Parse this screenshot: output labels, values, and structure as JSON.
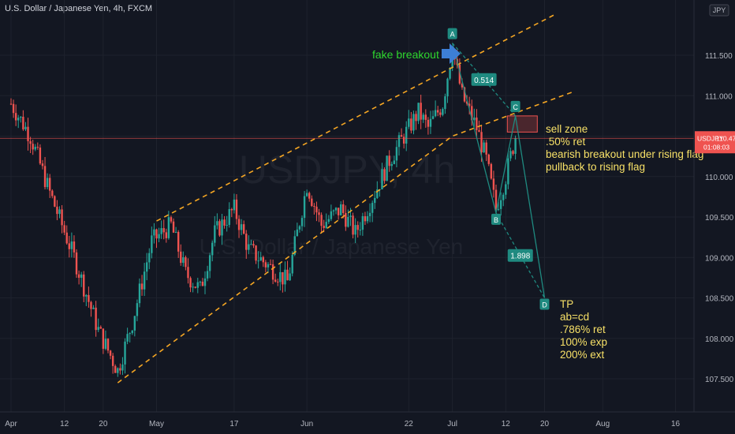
{
  "header": {
    "title": "U.S. Dollar / Japanese Yen, 4h, FXCM"
  },
  "currency_badge": "JPY",
  "watermark": {
    "symbol": "USDJPY, 4h",
    "name": "U.S. Dollar / Japanese Yen"
  },
  "price_tag": {
    "symbol": "USDJPY",
    "price": "110.473",
    "countdown": "01:08:03",
    "value": 110.473
  },
  "colors": {
    "background": "#131722",
    "up": "#26a69a",
    "down": "#ef5350",
    "trend": "#f5a623",
    "pattern": "#1f8a80",
    "note": "#f7e067",
    "breakout_text": "#2ed62e",
    "arrow": "#3d7fd6"
  },
  "annotations": {
    "fake_breakout": "fake breakout",
    "sell_zone": [
      "sell zone",
      ".50% ret",
      "bearish breakout under rising flag",
      "pullback to rising flag"
    ],
    "tp": [
      "TP",
      "ab=cd",
      ".786% ret",
      "100% exp",
      "200% ext"
    ]
  },
  "chart_data": {
    "type": "candlestick",
    "title": "U.S. Dollar / Japanese Yen, 4h, FXCM",
    "interval": "4h",
    "y_ticks": [
      "111.500",
      "111.000",
      "110.500",
      "110.000",
      "109.500",
      "109.000",
      "108.500",
      "108.000",
      "107.500"
    ],
    "y_tick_values": [
      111.5,
      111.0,
      110.5,
      110.0,
      109.5,
      109.0,
      108.5,
      108.0,
      107.5
    ],
    "x_ticks": [
      "Apr",
      "12",
      "20",
      "May",
      "17",
      "Jun",
      "22",
      "Jul",
      "12",
      "20",
      "Aug",
      "16"
    ],
    "ylim": [
      107.2,
      112.0
    ],
    "price_path": [
      [
        "Apr 1",
        110.9
      ],
      [
        "Apr 5",
        110.5
      ],
      [
        "Apr 9",
        109.8
      ],
      [
        "Apr 14",
        109.0
      ],
      [
        "Apr 19",
        108.1
      ],
      [
        "Apr 23",
        107.6
      ],
      [
        "Apr 26",
        108.2
      ],
      [
        "Apr 30",
        109.2
      ],
      [
        "May 4",
        109.4
      ],
      [
        "May 7",
        108.8
      ],
      [
        "May 10",
        108.6
      ],
      [
        "May 13",
        109.3
      ],
      [
        "May 17",
        109.6
      ],
      [
        "May 20",
        109.1
      ],
      [
        "May 24",
        108.9
      ],
      [
        "May 28",
        108.7
      ],
      [
        "Jun 1",
        109.9
      ],
      [
        "Jun 4",
        109.4
      ],
      [
        "Jun 8",
        109.6
      ],
      [
        "Jun 11",
        109.3
      ],
      [
        "Jun 15",
        109.8
      ],
      [
        "Jun 18",
        110.2
      ],
      [
        "Jun 21",
        110.5
      ],
      [
        "Jun 24",
        110.8
      ],
      [
        "Jun 26",
        110.6
      ],
      [
        "Jun 29",
        110.9
      ],
      [
        "Jul 1",
        111.6
      ],
      [
        "Jul 3",
        111.0
      ],
      [
        "Jul 6",
        110.6
      ],
      [
        "Jul 8",
        110.2
      ],
      [
        "Jul 10",
        109.6
      ],
      [
        "Jul 12",
        110.0
      ],
      [
        "Jul 14",
        110.5
      ]
    ],
    "flag_upper_line": [
      [
        "May 1",
        109.45
      ],
      [
        "Jul 1",
        111.35
      ],
      [
        "Jul 22",
        112.0
      ]
    ],
    "flag_lower_line": [
      [
        "Apr 23",
        107.45
      ],
      [
        "Jul 1",
        110.5
      ],
      [
        "Jul 26",
        111.05
      ]
    ],
    "pattern_points": [
      {
        "label": "A",
        "date": "Jul 1",
        "price": 111.65
      },
      {
        "label": "B",
        "date": "Jul 10",
        "price": 109.55
      },
      {
        "label": "C",
        "date": "Jul 14",
        "price": 110.75
      },
      {
        "label": "D",
        "date": "Jul 20",
        "price": 108.5
      }
    ],
    "ratios": [
      {
        "label": "0.514",
        "between": [
          "A",
          "C"
        ]
      },
      {
        "label": "1.898",
        "between": [
          "B",
          "D"
        ]
      }
    ],
    "sell_zone_box": {
      "price_low": 110.55,
      "price_high": 110.75
    },
    "current_price": 110.473,
    "grid": true
  }
}
